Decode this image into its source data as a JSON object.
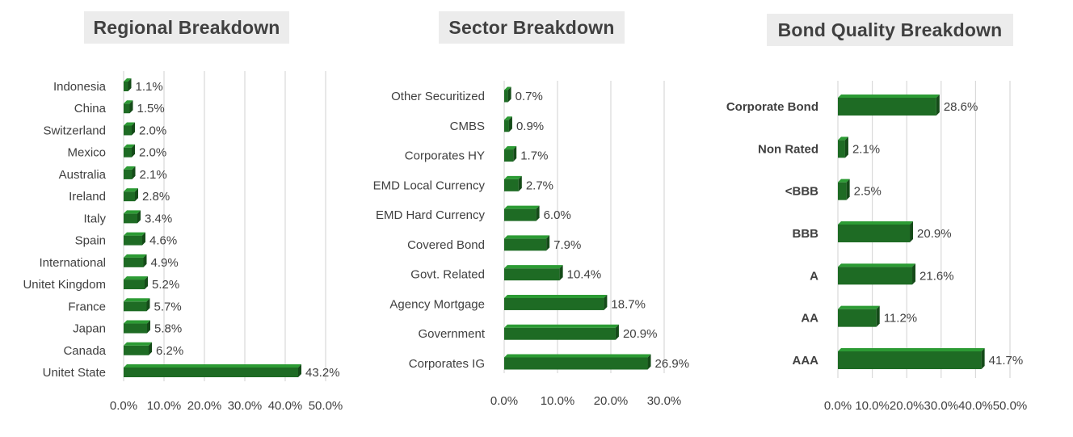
{
  "chart_data": [
    {
      "type": "bar",
      "orientation": "horizontal",
      "title": "Regional Breakdown",
      "categories": [
        "Indonesia",
        "China",
        "Switzerland",
        "Mexico",
        "Australia",
        "Ireland",
        "Italy",
        "Spain",
        "International",
        "Unitet Kingdom",
        "France",
        "Japan",
        "Canada",
        "Unitet State"
      ],
      "values": [
        1.1,
        1.5,
        2.0,
        2.0,
        2.1,
        2.8,
        3.4,
        4.6,
        4.9,
        5.2,
        5.7,
        5.8,
        6.2,
        43.2
      ],
      "data_labels": [
        "1.1%",
        "1.5%",
        "2.0%",
        "2.0%",
        "2.1%",
        "2.8%",
        "3.4%",
        "4.6%",
        "4.9%",
        "5.2%",
        "5.7%",
        "5.8%",
        "6.2%",
        "43.2%"
      ],
      "xlim": [
        0,
        50
      ],
      "ticks": [
        "0.0%",
        "10.0%",
        "20.0%",
        "30.0%",
        "40.0%",
        "50.0%"
      ],
      "grid": true,
      "bar_color": "#1e6b24"
    },
    {
      "type": "bar",
      "orientation": "horizontal",
      "title": "Sector Breakdown",
      "categories": [
        "Other Securitized",
        "CMBS",
        "Corporates HY",
        "EMD Local Currency",
        "EMD Hard Currency",
        "Covered Bond",
        "Govt. Related",
        "Agency Mortgage",
        "Government",
        "Corporates IG"
      ],
      "values": [
        0.7,
        0.9,
        1.7,
        2.7,
        6.0,
        7.9,
        10.4,
        18.7,
        20.9,
        26.9
      ],
      "data_labels": [
        "0.7%",
        "0.9%",
        "1.7%",
        "2.7%",
        "6.0%",
        "7.9%",
        "10.4%",
        "18.7%",
        "20.9%",
        "26.9%"
      ],
      "xlim": [
        0,
        30
      ],
      "ticks": [
        "0.0%",
        "10.0%",
        "20.0%",
        "30.0%"
      ],
      "grid": true,
      "bar_color": "#1e6b24"
    },
    {
      "type": "bar",
      "orientation": "horizontal",
      "title": "Bond Quality Breakdown",
      "categories": [
        "Corporate Bond",
        "Non Rated",
        "<BBB",
        "BBB",
        "A",
        "AA",
        "AAA"
      ],
      "values": [
        28.6,
        2.1,
        2.5,
        20.9,
        21.6,
        11.2,
        41.7
      ],
      "data_labels": [
        "28.6%",
        "2.1%",
        "2.5%",
        "20.9%",
        "21.6%",
        "11.2%",
        "41.7%"
      ],
      "xlim": [
        0,
        50
      ],
      "ticks": [
        "0.0%",
        "10.0%",
        "20.0%",
        "30.0%",
        "40.0%",
        "50.0%"
      ],
      "grid": true,
      "bar_color": "#1e6b24"
    }
  ]
}
